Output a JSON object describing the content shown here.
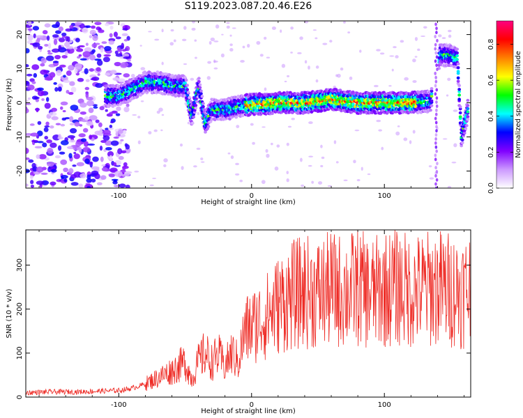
{
  "title": "S119.2023.087.20.46.E26",
  "chart_data": [
    {
      "type": "heatmap",
      "xlabel": "Height of straight line (km)",
      "ylabel": "Frequency (Hz)",
      "xlim": [
        -170,
        165
      ],
      "ylim": [
        -25,
        24
      ],
      "x_ticks": [
        -100,
        0,
        100
      ],
      "y_ticks": [
        -20,
        -10,
        0,
        10,
        20
      ],
      "colorbar": {
        "label": "Normalized spectral amplitude",
        "range": [
          0,
          0.93
        ],
        "ticks": [
          0.0,
          0.2,
          0.4,
          0.6,
          0.8
        ],
        "colors": [
          "#ffffff",
          "#cc99ff",
          "#8000ff",
          "#0000ff",
          "#00ffff",
          "#00ff00",
          "#ffff00",
          "#ff8000",
          "#ff0000",
          "#ff0080"
        ]
      },
      "ridge": [
        {
          "x": -110,
          "y": 2
        },
        {
          "x": -100,
          "y": 2
        },
        {
          "x": -90,
          "y": 4
        },
        {
          "x": -80,
          "y": 6
        },
        {
          "x": -70,
          "y": 6
        },
        {
          "x": -60,
          "y": 5
        },
        {
          "x": -50,
          "y": 5
        },
        {
          "x": -45,
          "y": -4
        },
        {
          "x": -40,
          "y": 5
        },
        {
          "x": -35,
          "y": -6
        },
        {
          "x": -30,
          "y": -2
        },
        {
          "x": -20,
          "y": -2
        },
        {
          "x": -10,
          "y": -1
        },
        {
          "x": 0,
          "y": -0.5
        },
        {
          "x": 20,
          "y": 0
        },
        {
          "x": 40,
          "y": 0
        },
        {
          "x": 60,
          "y": 1
        },
        {
          "x": 80,
          "y": 0
        },
        {
          "x": 100,
          "y": 0
        },
        {
          "x": 120,
          "y": 0
        },
        {
          "x": 135,
          "y": 0.5
        },
        {
          "x": 142,
          "y": 14
        },
        {
          "x": 150,
          "y": 14
        },
        {
          "x": 155,
          "y": 13
        },
        {
          "x": 158,
          "y": -10
        },
        {
          "x": 163,
          "y": -2
        }
      ]
    },
    {
      "type": "line",
      "xlabel": "Height of straight line (km)",
      "ylabel": "SNR (10 * v/v)",
      "xlim": [
        -170,
        165
      ],
      "ylim": [
        0,
        380
      ],
      "x_ticks": [
        -100,
        0,
        100
      ],
      "y_ticks": [
        0,
        100,
        200,
        300
      ],
      "series": [
        {
          "color": "#ee2a24",
          "x": [
            -170,
            -150,
            -130,
            -110,
            -100,
            -90,
            -80,
            -70,
            -60,
            -50,
            -45,
            -40,
            -35,
            -30,
            -25,
            -20,
            -15,
            -10,
            -5,
            0,
            10,
            20,
            30,
            40,
            50,
            60,
            70,
            80,
            90,
            100,
            110,
            120,
            130,
            140,
            150,
            160,
            165
          ],
          "y": [
            10,
            12,
            12,
            14,
            15,
            20,
            30,
            45,
            60,
            80,
            40,
            80,
            100,
            80,
            95,
            70,
            100,
            80,
            150,
            160,
            180,
            210,
            230,
            240,
            235,
            245,
            240,
            250,
            235,
            245,
            250,
            240,
            245,
            250,
            245,
            240,
            250
          ]
        }
      ]
    }
  ]
}
